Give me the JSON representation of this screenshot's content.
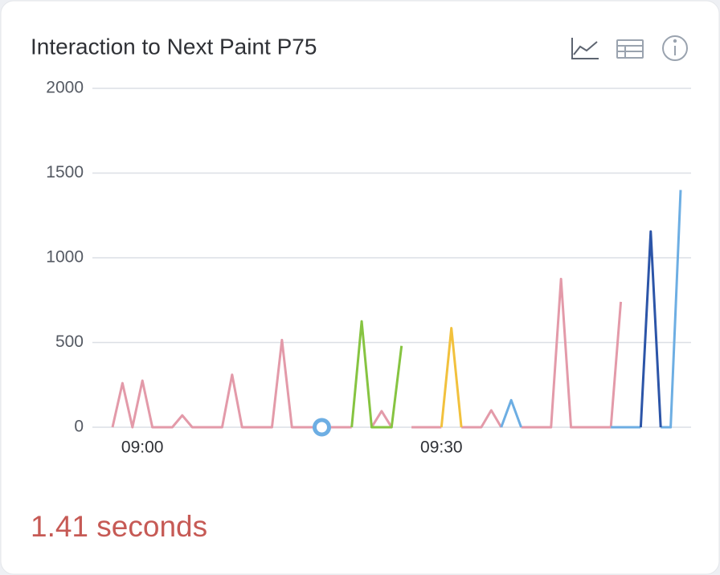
{
  "chart_data": {
    "type": "line",
    "title": "Interaction to Next Paint P75",
    "summary": "1.41 seconds",
    "summary_color": "#c65a55",
    "categories": [
      null,
      null,
      null,
      "09:00",
      null,
      null,
      null,
      null,
      null,
      null,
      null,
      null,
      null,
      null,
      null,
      null,
      null,
      null,
      null,
      null,
      null,
      null,
      null,
      null,
      null,
      null,
      null,
      null,
      null,
      null,
      null,
      null,
      null,
      "09:30",
      null,
      null,
      null,
      null,
      null,
      null,
      null,
      null,
      null,
      null,
      null,
      null,
      null,
      null,
      null,
      null,
      null,
      null,
      null,
      null,
      null,
      null,
      null,
      null
    ],
    "series": [
      {
        "color": "#e39aa9",
        "values": [
          0,
          260,
          0,
          275,
          0,
          0,
          0,
          70,
          0,
          0,
          0,
          0,
          310,
          0,
          0,
          0,
          0,
          515,
          0,
          0,
          0,
          0,
          0,
          0,
          0,
          null,
          0,
          95,
          0,
          null,
          0,
          0,
          0,
          0,
          null,
          0,
          0,
          0,
          100,
          0,
          null,
          0,
          0,
          0,
          0,
          875,
          0,
          0,
          0,
          0,
          0,
          740,
          null,
          null,
          null,
          null,
          null,
          null
        ]
      },
      {
        "color": "#86c441",
        "values": [
          null,
          null,
          null,
          null,
          null,
          null,
          null,
          null,
          null,
          null,
          null,
          null,
          null,
          null,
          null,
          null,
          null,
          null,
          null,
          null,
          null,
          null,
          null,
          null,
          0,
          625,
          0,
          0,
          0,
          480,
          null,
          null,
          null,
          null,
          null,
          null,
          null,
          null,
          null,
          null,
          null,
          null,
          null,
          null,
          null,
          null,
          null,
          null,
          null,
          null,
          null,
          null,
          null,
          null,
          null,
          null,
          null,
          null
        ]
      },
      {
        "color": "#f2c13d",
        "values": [
          null,
          null,
          null,
          null,
          null,
          null,
          null,
          null,
          null,
          null,
          null,
          null,
          null,
          null,
          null,
          null,
          null,
          null,
          null,
          null,
          null,
          null,
          null,
          null,
          null,
          null,
          null,
          null,
          null,
          null,
          null,
          null,
          null,
          0,
          585,
          0,
          null,
          null,
          null,
          null,
          null,
          null,
          null,
          null,
          null,
          null,
          null,
          null,
          null,
          null,
          null,
          null,
          null,
          null,
          null,
          null,
          null,
          null
        ]
      },
      {
        "color": "#6daee3",
        "values": [
          null,
          null,
          null,
          null,
          null,
          null,
          null,
          null,
          null,
          null,
          null,
          null,
          null,
          null,
          null,
          null,
          null,
          null,
          null,
          null,
          null,
          0,
          null,
          null,
          null,
          null,
          null,
          null,
          null,
          null,
          null,
          null,
          null,
          null,
          null,
          null,
          null,
          null,
          null,
          0,
          160,
          0,
          null,
          null,
          null,
          null,
          null,
          null,
          null,
          null,
          0,
          0,
          0,
          0,
          null,
          0,
          0,
          1400
        ]
      },
      {
        "color": "#2c55a8",
        "values": [
          null,
          null,
          null,
          null,
          null,
          null,
          null,
          null,
          null,
          null,
          null,
          null,
          null,
          null,
          null,
          null,
          null,
          null,
          null,
          null,
          null,
          null,
          null,
          null,
          null,
          null,
          null,
          null,
          null,
          null,
          null,
          null,
          null,
          null,
          null,
          null,
          null,
          null,
          null,
          null,
          null,
          null,
          null,
          null,
          null,
          null,
          null,
          null,
          null,
          null,
          null,
          null,
          null,
          0,
          1155,
          0,
          null,
          null
        ]
      }
    ],
    "ylim": [
      0,
      2000
    ],
    "yticks": [
      0,
      500,
      1000,
      1500,
      2000
    ],
    "grid": true
  }
}
